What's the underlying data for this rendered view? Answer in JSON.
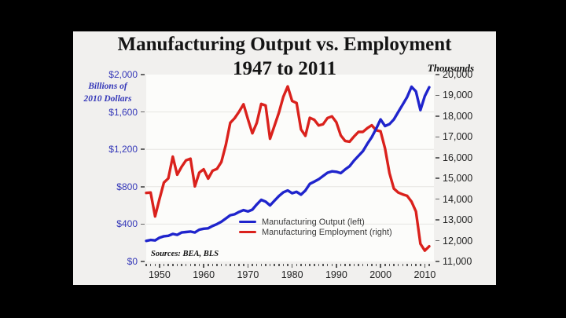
{
  "chart": {
    "title": "Manufacturing Output vs. Employment",
    "subtitle": "1947 to 2011",
    "left_axis_title_line1": "Billions of",
    "left_axis_title_line2": "2010 Dollars",
    "right_axis_title": "Thousands",
    "legend": [
      {
        "label": "Manufacturing Output (left)",
        "color": "#1f24cc"
      },
      {
        "label": "Manufacturing Employment (right)",
        "color": "#da211c"
      }
    ],
    "sources": "Sources: BEA, BLS",
    "colors": {
      "panel_background": "#f1f0ee",
      "plot_background": "#fcfcfa",
      "outer_background": "#000000",
      "left_axis_text": "#3437b8",
      "right_axis_text": "#222222",
      "gridline": "#e6e5e2"
    }
  },
  "chart_data": {
    "type": "line",
    "title": "Manufacturing Output vs. Employment 1947 to 2011",
    "x_range": [
      1947,
      2011
    ],
    "x": [
      1947,
      1948,
      1949,
      1950,
      1951,
      1952,
      1953,
      1954,
      1955,
      1956,
      1957,
      1958,
      1959,
      1960,
      1961,
      1962,
      1963,
      1964,
      1965,
      1966,
      1967,
      1968,
      1969,
      1970,
      1971,
      1972,
      1973,
      1974,
      1975,
      1976,
      1977,
      1978,
      1979,
      1980,
      1981,
      1982,
      1983,
      1984,
      1985,
      1986,
      1987,
      1988,
      1989,
      1990,
      1991,
      1992,
      1993,
      1994,
      1995,
      1996,
      1997,
      1998,
      1999,
      2000,
      2001,
      2002,
      2003,
      2004,
      2005,
      2006,
      2007,
      2008,
      2009,
      2010,
      2011
    ],
    "series": [
      {
        "name": "Manufacturing Output (left)",
        "axis": "left",
        "color": "#1f24cc",
        "values": [
          220,
          230,
          225,
          255,
          270,
          275,
          295,
          285,
          310,
          315,
          320,
          310,
          340,
          350,
          355,
          380,
          400,
          425,
          460,
          495,
          505,
          530,
          550,
          535,
          555,
          610,
          660,
          640,
          600,
          650,
          700,
          740,
          760,
          730,
          745,
          715,
          760,
          830,
          855,
          880,
          915,
          950,
          965,
          960,
          945,
          985,
          1020,
          1080,
          1130,
          1180,
          1260,
          1330,
          1420,
          1520,
          1450,
          1470,
          1520,
          1600,
          1680,
          1760,
          1870,
          1820,
          1620,
          1770,
          1865
        ]
      },
      {
        "name": "Manufacturing Employment (right)",
        "axis": "right",
        "color": "#da211c",
        "values": [
          14300,
          14320,
          13170,
          14010,
          14800,
          15000,
          16050,
          15180,
          15560,
          15870,
          15950,
          14620,
          15280,
          15440,
          14990,
          15370,
          15460,
          15790,
          16620,
          17680,
          17900,
          18210,
          18570,
          17850,
          17170,
          17670,
          18590,
          18510,
          16910,
          17530,
          18170,
          18930,
          19430,
          18730,
          18630,
          17360,
          17050,
          17920,
          17820,
          17550,
          17610,
          17910,
          17990,
          17700,
          17070,
          16800,
          16770,
          17020,
          17240,
          17240,
          17420,
          17560,
          17320,
          17270,
          16440,
          15260,
          14510,
          14320,
          14230,
          14160,
          13880,
          13410,
          11850,
          11520,
          11730
        ]
      }
    ],
    "left_axis": {
      "label": "Billions of 2010 Dollars",
      "range": [
        0,
        2000
      ],
      "ticks": [
        {
          "value": 0,
          "label": "$0"
        },
        {
          "value": 400,
          "label": "$400"
        },
        {
          "value": 800,
          "label": "$800"
        },
        {
          "value": 1200,
          "label": "$1,200"
        },
        {
          "value": 1600,
          "label": "$1,600"
        },
        {
          "value": 2000,
          "label": "$2,000"
        }
      ]
    },
    "right_axis": {
      "label": "Thousands",
      "range": [
        11000,
        20000
      ],
      "ticks": [
        {
          "value": 11000,
          "label": "11,000"
        },
        {
          "value": 12000,
          "label": "12,000"
        },
        {
          "value": 13000,
          "label": "13,000"
        },
        {
          "value": 14000,
          "label": "14,000"
        },
        {
          "value": 15000,
          "label": "15,000"
        },
        {
          "value": 16000,
          "label": "16,000"
        },
        {
          "value": 17000,
          "label": "17,000"
        },
        {
          "value": 18000,
          "label": "18,000"
        },
        {
          "value": 19000,
          "label": "19,000"
        },
        {
          "value": 20000,
          "label": "20,000"
        }
      ]
    },
    "x_axis": {
      "minor_ticks": "annual 1947-2011",
      "decades": [
        {
          "year": 1950,
          "label": "1950"
        },
        {
          "year": 1960,
          "label": "1960"
        },
        {
          "year": 1970,
          "label": "1970"
        },
        {
          "year": 1980,
          "label": "1980"
        },
        {
          "year": 1990,
          "label": "1990"
        },
        {
          "year": 2000,
          "label": "2000"
        },
        {
          "year": 2010,
          "label": "2010"
        }
      ]
    },
    "grid": "horizontal light gridlines at left-axis ticks",
    "legend_position": "inside plot, lower middle"
  }
}
